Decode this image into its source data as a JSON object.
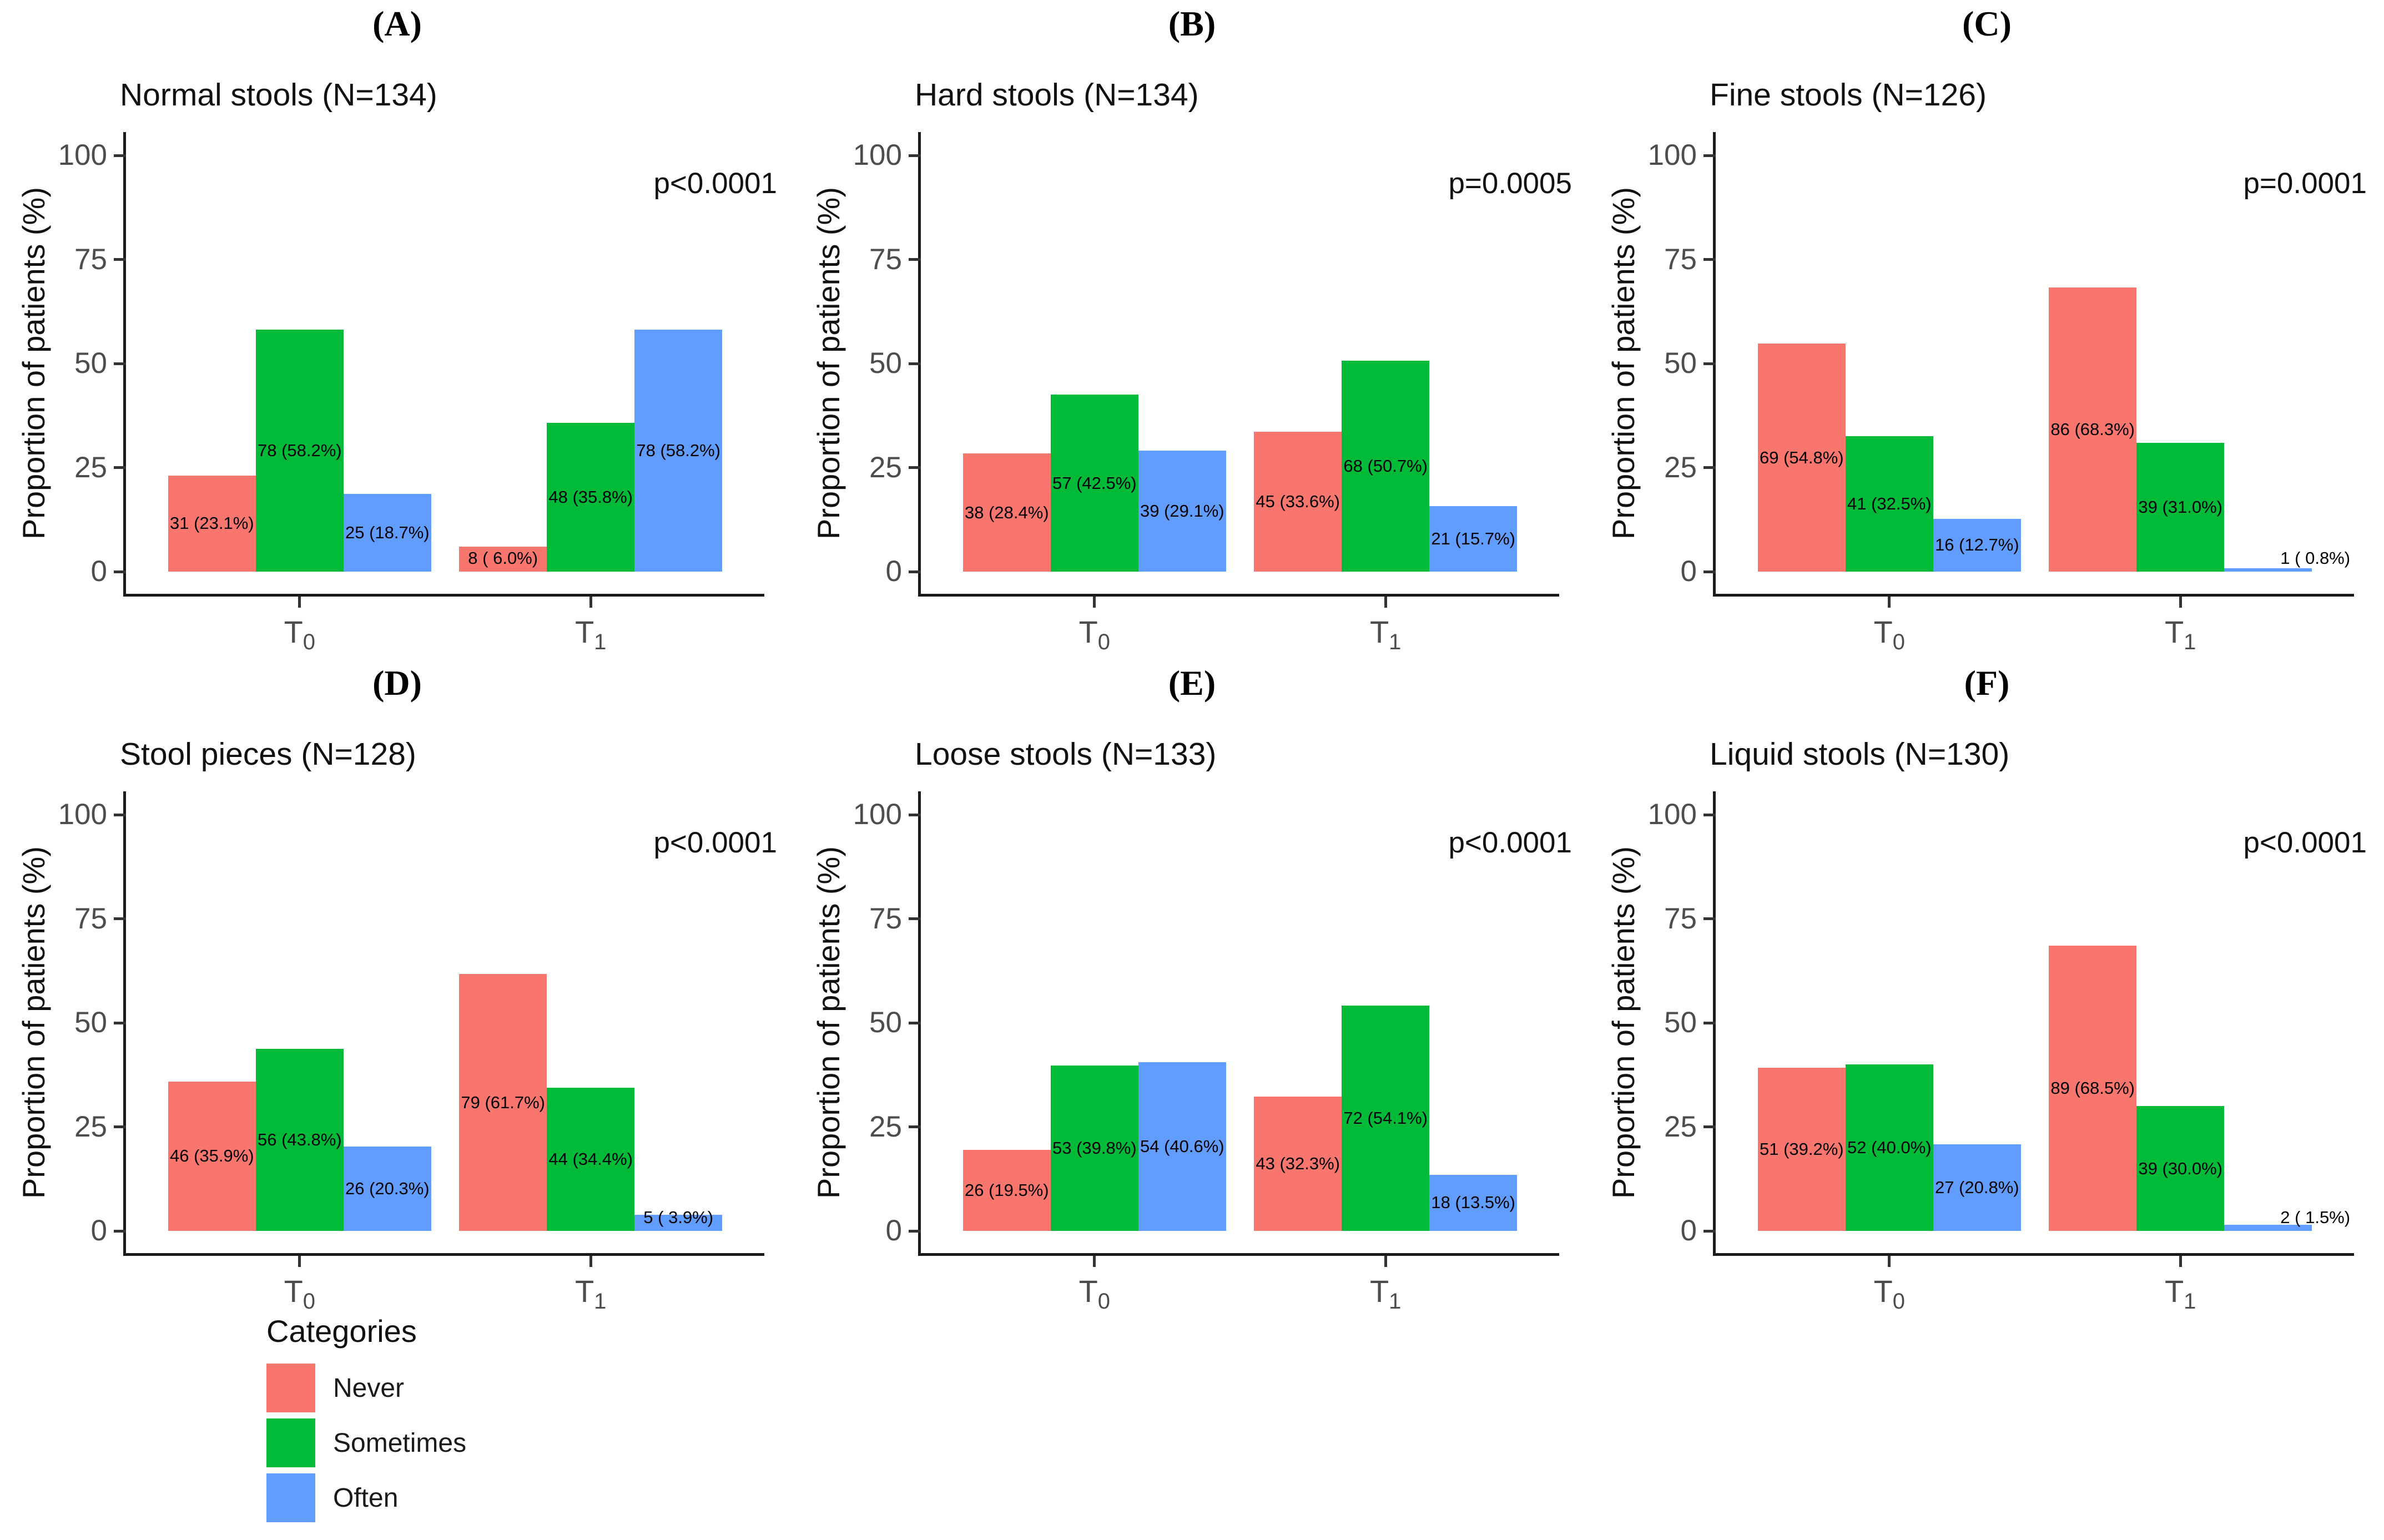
{
  "axes": {
    "y_label": "Proportion of patients (%)",
    "y_ticks": [
      "0",
      "25",
      "50",
      "75",
      "100"
    ],
    "ylim": [
      0,
      100
    ],
    "x_categories": [
      {
        "base": "T",
        "sub": "0"
      },
      {
        "base": "T",
        "sub": "1"
      }
    ]
  },
  "colors": {
    "Never": "#F8766D",
    "Sometimes": "#00BA38",
    "Often": "#619CFF"
  },
  "legend": {
    "title": "Categories",
    "items": [
      {
        "label": "Never",
        "color": "#F8766D"
      },
      {
        "label": "Sometimes",
        "color": "#00BA38"
      },
      {
        "label": "Often",
        "color": "#619CFF"
      }
    ]
  },
  "chart_data": [
    {
      "type": "bar",
      "letter": "(A)",
      "title": "Normal stools (N=134)",
      "p_value": "p<0.0001",
      "xlabel": "",
      "ylabel": "Proportion of patients (%)",
      "ylim": [
        0,
        100
      ],
      "categories": [
        "T0",
        "T1"
      ],
      "series": [
        {
          "name": "Never",
          "counts": [
            31,
            8
          ],
          "values": [
            23.1,
            6.0
          ],
          "labels": [
            "31 (23.1%)",
            "8 ( 6.0%)"
          ]
        },
        {
          "name": "Sometimes",
          "counts": [
            78,
            48
          ],
          "values": [
            58.2,
            35.8
          ],
          "labels": [
            "78 (58.2%)",
            "48 (35.8%)"
          ]
        },
        {
          "name": "Often",
          "counts": [
            25,
            78
          ],
          "values": [
            18.7,
            58.2
          ],
          "labels": [
            "25 (18.7%)",
            "78 (58.2%)"
          ]
        }
      ]
    },
    {
      "type": "bar",
      "letter": "(B)",
      "title": "Hard stools (N=134)",
      "p_value": "p=0.0005",
      "xlabel": "",
      "ylabel": "Proportion of patients (%)",
      "ylim": [
        0,
        100
      ],
      "categories": [
        "T0",
        "T1"
      ],
      "series": [
        {
          "name": "Never",
          "counts": [
            38,
            45
          ],
          "values": [
            28.4,
            33.6
          ],
          "labels": [
            "38 (28.4%)",
            "45 (33.6%)"
          ]
        },
        {
          "name": "Sometimes",
          "counts": [
            57,
            68
          ],
          "values": [
            42.5,
            50.7
          ],
          "labels": [
            "57 (42.5%)",
            "68 (50.7%)"
          ]
        },
        {
          "name": "Often",
          "counts": [
            39,
            21
          ],
          "values": [
            29.1,
            15.7
          ],
          "labels": [
            "39 (29.1%)",
            "21 (15.7%)"
          ]
        }
      ]
    },
    {
      "type": "bar",
      "letter": "(C)",
      "title": "Fine stools (N=126)",
      "p_value": "p=0.0001",
      "xlabel": "",
      "ylabel": "Proportion of patients (%)",
      "ylim": [
        0,
        100
      ],
      "categories": [
        "T0",
        "T1"
      ],
      "series": [
        {
          "name": "Never",
          "counts": [
            69,
            86
          ],
          "values": [
            54.8,
            68.3
          ],
          "labels": [
            "69 (54.8%)",
            "86 (68.3%)"
          ]
        },
        {
          "name": "Sometimes",
          "counts": [
            41,
            39
          ],
          "values": [
            32.5,
            31.0
          ],
          "labels": [
            "41 (32.5%)",
            "39 (31.0%)"
          ]
        },
        {
          "name": "Often",
          "counts": [
            16,
            1
          ],
          "values": [
            12.7,
            0.8
          ],
          "labels": [
            "16 (12.7%)",
            "1 ( 0.8%)"
          ]
        }
      ]
    },
    {
      "type": "bar",
      "letter": "(D)",
      "title": "Stool pieces (N=128)",
      "p_value": "p<0.0001",
      "xlabel": "",
      "ylabel": "Proportion of patients (%)",
      "ylim": [
        0,
        100
      ],
      "categories": [
        "T0",
        "T1"
      ],
      "series": [
        {
          "name": "Never",
          "counts": [
            46,
            79
          ],
          "values": [
            35.9,
            61.7
          ],
          "labels": [
            "46 (35.9%)",
            "79 (61.7%)"
          ]
        },
        {
          "name": "Sometimes",
          "counts": [
            56,
            44
          ],
          "values": [
            43.8,
            34.4
          ],
          "labels": [
            "56 (43.8%)",
            "44 (34.4%)"
          ]
        },
        {
          "name": "Often",
          "counts": [
            26,
            5
          ],
          "values": [
            20.3,
            3.9
          ],
          "labels": [
            "26 (20.3%)",
            "5 ( 3.9%)"
          ]
        }
      ]
    },
    {
      "type": "bar",
      "letter": "(E)",
      "title": "Loose stools (N=133)",
      "p_value": "p<0.0001",
      "xlabel": "",
      "ylabel": "Proportion of patients (%)",
      "ylim": [
        0,
        100
      ],
      "categories": [
        "T0",
        "T1"
      ],
      "series": [
        {
          "name": "Never",
          "counts": [
            26,
            43
          ],
          "values": [
            19.5,
            32.3
          ],
          "labels": [
            "26 (19.5%)",
            "43 (32.3%)"
          ]
        },
        {
          "name": "Sometimes",
          "counts": [
            53,
            72
          ],
          "values": [
            39.8,
            54.1
          ],
          "labels": [
            "53 (39.8%)",
            "72 (54.1%)"
          ]
        },
        {
          "name": "Often",
          "counts": [
            54,
            18
          ],
          "values": [
            40.6,
            13.5
          ],
          "labels": [
            "54 (40.6%)",
            "18 (13.5%)"
          ]
        }
      ]
    },
    {
      "type": "bar",
      "letter": "(F)",
      "title": "Liquid stools (N=130)",
      "p_value": "p<0.0001",
      "xlabel": "",
      "ylabel": "Proportion of patients (%)",
      "ylim": [
        0,
        100
      ],
      "categories": [
        "T0",
        "T1"
      ],
      "series": [
        {
          "name": "Never",
          "counts": [
            51,
            89
          ],
          "values": [
            39.2,
            68.5
          ],
          "labels": [
            "51 (39.2%)",
            "89 (68.5%)"
          ]
        },
        {
          "name": "Sometimes",
          "counts": [
            52,
            39
          ],
          "values": [
            40.0,
            30.0
          ],
          "labels": [
            "52 (40.0%)",
            "39 (30.0%)"
          ]
        },
        {
          "name": "Often",
          "counts": [
            27,
            2
          ],
          "values": [
            20.8,
            1.5
          ],
          "labels": [
            "27 (20.8%)",
            "2 ( 1.5%)"
          ]
        }
      ]
    }
  ]
}
